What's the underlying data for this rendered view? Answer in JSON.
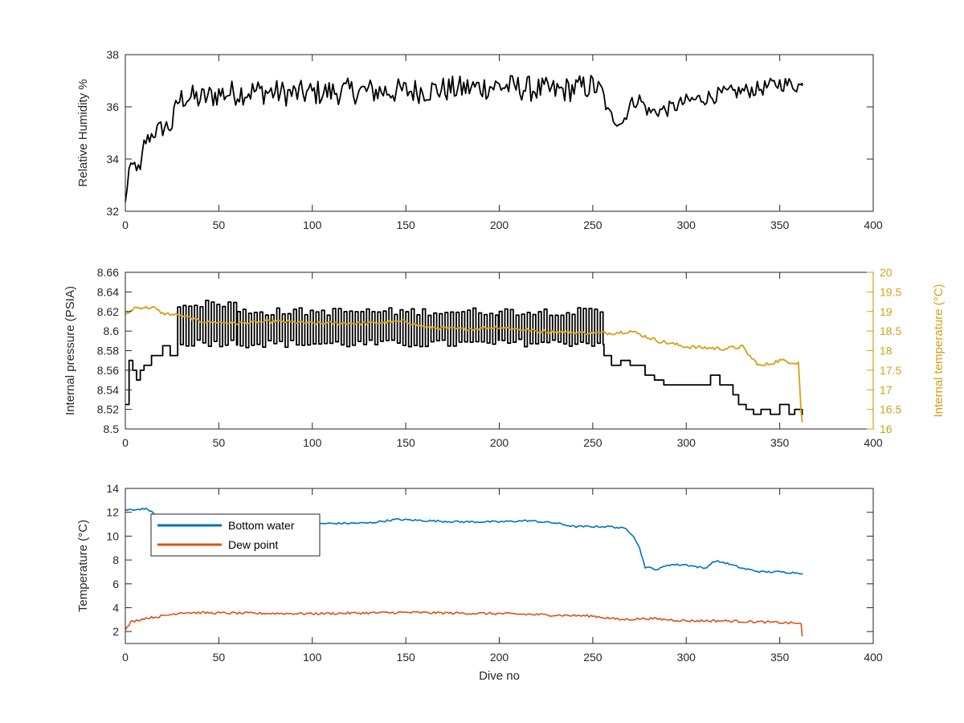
{
  "chart_data": [
    {
      "type": "line",
      "xlabel": "",
      "ylabel": "Relative Humidity %",
      "xlim": [
        0,
        400
      ],
      "ylim": [
        32,
        38
      ],
      "xticks": [
        0,
        50,
        100,
        150,
        200,
        250,
        300,
        350,
        400
      ],
      "yticks": [
        32,
        34,
        36,
        38
      ],
      "series": [
        {
          "color": "#000000",
          "generator": "jitter",
          "base": [
            [
              0,
              32.3
            ],
            [
              2,
              33.6
            ],
            [
              5,
              33.8
            ],
            [
              8,
              33.5
            ],
            [
              10,
              34.6
            ],
            [
              15,
              35.0
            ],
            [
              20,
              35.2
            ],
            [
              25,
              35.3
            ],
            [
              28,
              36.2
            ],
            [
              32,
              36.4
            ],
            [
              40,
              36.3
            ],
            [
              50,
              36.5
            ],
            [
              70,
              36.6
            ],
            [
              90,
              36.5
            ],
            [
              120,
              36.6
            ],
            [
              150,
              36.6
            ],
            [
              180,
              36.7
            ],
            [
              200,
              36.8
            ],
            [
              230,
              36.6
            ],
            [
              250,
              36.8
            ],
            [
              255,
              36.6
            ],
            [
              258,
              35.8
            ],
            [
              262,
              35.5
            ],
            [
              266,
              35.4
            ],
            [
              270,
              36.1
            ],
            [
              275,
              36.3
            ],
            [
              280,
              35.8
            ],
            [
              290,
              35.9
            ],
            [
              300,
              36.2
            ],
            [
              320,
              36.5
            ],
            [
              340,
              36.7
            ],
            [
              350,
              36.9
            ],
            [
              362,
              36.8
            ]
          ],
          "noise": [
            [
              0,
              0.15
            ],
            [
              30,
              0.5
            ],
            [
              250,
              0.5
            ],
            [
              258,
              0.25
            ],
            [
              300,
              0.3
            ],
            [
              362,
              0.3
            ]
          ]
        }
      ]
    },
    {
      "type": "line",
      "xlabel": "",
      "ylabel": "Internal pressure (PSIA)",
      "y2label": "Internal temperature (°C)",
      "xlim": [
        0,
        400
      ],
      "ylim": [
        8.5,
        8.66
      ],
      "y2lim": [
        16,
        20
      ],
      "xticks": [
        0,
        50,
        100,
        150,
        200,
        250,
        300,
        350,
        400
      ],
      "yticks": [
        8.5,
        8.52,
        8.54,
        8.56,
        8.58,
        8.6,
        8.62,
        8.64,
        8.66
      ],
      "yticklabels": [
        "8.5",
        "8.52",
        "8.54",
        "8.56",
        "8.58",
        "8.6",
        "8.62",
        "8.64",
        "8.66"
      ],
      "y2ticks": [
        16,
        16.5,
        17,
        17.5,
        18,
        18.5,
        19,
        19.5,
        20
      ],
      "y2ticklabels": [
        "16",
        "16.5",
        "17",
        "17.5",
        "18",
        "18.5",
        "19",
        "19.5",
        "20"
      ],
      "series": [
        {
          "color": "#000000",
          "axis": "left",
          "generator": "step",
          "segments": [
            [
              0,
              8.525
            ],
            [
              2,
              8.57
            ],
            [
              4,
              8.56
            ],
            [
              6,
              8.55
            ],
            [
              8,
              8.56
            ],
            [
              10,
              8.565
            ],
            [
              14,
              8.575
            ],
            [
              20,
              8.585
            ],
            [
              24,
              8.575
            ],
            [
              28,
              "osc",
              8.588,
              8.628,
              3
            ],
            [
              60,
              "osc",
              8.587,
              8.62,
              3
            ],
            [
              200,
              "osc",
              8.588,
              8.62,
              3
            ],
            [
              256,
              8.575
            ],
            [
              260,
              8.565
            ],
            [
              265,
              8.57
            ],
            [
              270,
              8.565
            ],
            [
              278,
              8.555
            ],
            [
              283,
              8.55
            ],
            [
              288,
              8.545
            ],
            [
              300,
              8.545
            ],
            [
              310,
              8.545
            ],
            [
              313,
              8.555
            ],
            [
              318,
              8.545
            ],
            [
              325,
              8.535
            ],
            [
              328,
              8.525
            ],
            [
              332,
              8.52
            ],
            [
              336,
              8.515
            ],
            [
              340,
              8.52
            ],
            [
              345,
              8.515
            ],
            [
              350,
              8.525
            ],
            [
              355,
              8.515
            ],
            [
              358,
              8.52
            ],
            [
              362,
              8.515
            ]
          ]
        },
        {
          "color": "#D4A017",
          "axis": "right",
          "generator": "jitter",
          "base": [
            [
              0,
              18.9
            ],
            [
              5,
              19.1
            ],
            [
              15,
              19.1
            ],
            [
              20,
              18.95
            ],
            [
              30,
              18.9
            ],
            [
              40,
              18.75
            ],
            [
              60,
              18.7
            ],
            [
              80,
              18.75
            ],
            [
              100,
              18.7
            ],
            [
              130,
              18.7
            ],
            [
              150,
              18.75
            ],
            [
              160,
              18.6
            ],
            [
              180,
              18.55
            ],
            [
              200,
              18.6
            ],
            [
              220,
              18.5
            ],
            [
              250,
              18.45
            ],
            [
              260,
              18.45
            ],
            [
              270,
              18.5
            ],
            [
              285,
              18.25
            ],
            [
              300,
              18.1
            ],
            [
              320,
              18.05
            ],
            [
              330,
              18.1
            ],
            [
              335,
              17.8
            ],
            [
              340,
              17.6
            ],
            [
              350,
              17.75
            ],
            [
              358,
              17.7
            ],
            [
              360,
              17.7
            ],
            [
              361.5,
              16.4
            ],
            [
              362,
              16.2
            ]
          ],
          "noise": [
            [
              0,
              0.04
            ],
            [
              362,
              0.05
            ]
          ]
        }
      ]
    },
    {
      "type": "line",
      "xlabel": "Dive no",
      "ylabel": "Temperature (°C)",
      "xlim": [
        0,
        400
      ],
      "ylim": [
        1,
        14
      ],
      "xticks": [
        0,
        50,
        100,
        150,
        200,
        250,
        300,
        350,
        400
      ],
      "yticks": [
        2,
        4,
        6,
        8,
        10,
        12,
        14
      ],
      "legend": {
        "position": "top-left"
      },
      "series": [
        {
          "name": "Bottom water",
          "color": "#0072BD",
          "generator": "jitter",
          "base": [
            [
              0,
              12.2
            ],
            [
              12,
              12.3
            ],
            [
              15,
              11.9
            ],
            [
              20,
              11.4
            ],
            [
              40,
              11.2
            ],
            [
              80,
              11.0
            ],
            [
              130,
              11.1
            ],
            [
              145,
              11.4
            ],
            [
              160,
              11.3
            ],
            [
              180,
              11.2
            ],
            [
              200,
              11.2
            ],
            [
              215,
              11.3
            ],
            [
              230,
              11.1
            ],
            [
              240,
              10.8
            ],
            [
              260,
              10.8
            ],
            [
              268,
              10.6
            ],
            [
              272,
              10.0
            ],
            [
              275,
              9.0
            ],
            [
              278,
              7.4
            ],
            [
              285,
              7.2
            ],
            [
              290,
              7.6
            ],
            [
              300,
              7.6
            ],
            [
              310,
              7.3
            ],
            [
              315,
              7.9
            ],
            [
              320,
              7.8
            ],
            [
              330,
              7.3
            ],
            [
              340,
              7.0
            ],
            [
              350,
              7.0
            ],
            [
              362,
              6.9
            ]
          ],
          "noise": [
            [
              0,
              0.08
            ],
            [
              362,
              0.08
            ]
          ]
        },
        {
          "name": "Dew point",
          "color": "#D95319",
          "generator": "jitter",
          "base": [
            [
              0,
              2.1
            ],
            [
              3,
              2.8
            ],
            [
              10,
              3.1
            ],
            [
              20,
              3.3
            ],
            [
              30,
              3.6
            ],
            [
              50,
              3.55
            ],
            [
              100,
              3.5
            ],
            [
              150,
              3.6
            ],
            [
              200,
              3.5
            ],
            [
              250,
              3.3
            ],
            [
              265,
              3.0
            ],
            [
              280,
              3.1
            ],
            [
              300,
              2.9
            ],
            [
              320,
              2.9
            ],
            [
              340,
              2.8
            ],
            [
              360,
              2.7
            ],
            [
              361.5,
              2.6
            ],
            [
              362,
              1.6
            ]
          ],
          "noise": [
            [
              0,
              0.1
            ],
            [
              362,
              0.1
            ]
          ]
        }
      ]
    }
  ]
}
